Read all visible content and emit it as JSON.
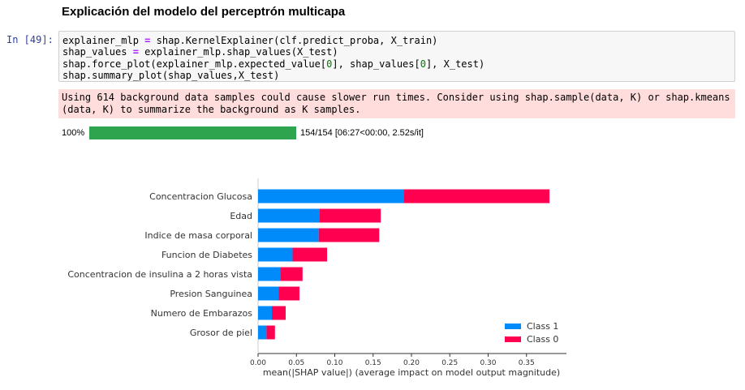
{
  "heading": "Explicación del modelo del perceptrón multicapa",
  "cell": {
    "prompt": "In [49]:",
    "code_lines": [
      [
        {
          "t": "explainer_mlp "
        },
        {
          "t": "=",
          "c": "kw"
        },
        {
          "t": " shap.KernelExplainer(clf.predict_proba, X_train)"
        }
      ],
      [
        {
          "t": "shap_values "
        },
        {
          "t": "=",
          "c": "kw"
        },
        {
          "t": " explainer_mlp.shap_values(X_test)"
        }
      ],
      [
        {
          "t": "shap.force_plot(explainer_mlp.expected_value["
        },
        {
          "t": "0",
          "c": "num"
        },
        {
          "t": "], shap_values["
        },
        {
          "t": "0",
          "c": "num"
        },
        {
          "t": "], X_test)"
        }
      ],
      [
        {
          "t": "shap.summary_plot(shap_values,X_test)"
        }
      ]
    ]
  },
  "stderr": "Using 614 background data samples could cause slower run times. Consider using shap.sample(data, K) or shap.kmeans\n(data, K) to summarize the background as K samples.",
  "progress": {
    "percent_label": "100%",
    "fraction": 1.0,
    "status": "154/154 [06:27<00:00, 2.52s/it]",
    "color": "#2ea44f"
  },
  "chart_data": {
    "type": "bar",
    "stacked": true,
    "orientation": "horizontal",
    "categories": [
      "Concentracion Glucosa",
      "Edad",
      "Indice de masa corporal",
      "Funcion de Diabetes",
      "Concentracion de insulina a 2 horas vista",
      "Presion Sanguinea",
      "Numero de Embarazos",
      "Grosor de piel"
    ],
    "series": [
      {
        "name": "Class 1",
        "color": "#008bfb",
        "values": [
          0.19,
          0.08,
          0.079,
          0.045,
          0.029,
          0.027,
          0.018,
          0.011
        ]
      },
      {
        "name": "Class 0",
        "color": "#ff0051",
        "values": [
          0.19,
          0.08,
          0.079,
          0.045,
          0.029,
          0.027,
          0.018,
          0.011
        ]
      }
    ],
    "xlabel": "mean(|SHAP value|) (average impact on model output magnitude)",
    "xlim": [
      0,
      0.4
    ],
    "xticks": [
      0.0,
      0.05,
      0.1,
      0.15,
      0.2,
      0.25,
      0.3,
      0.35
    ],
    "xtick_labels": [
      "0.00",
      "0.05",
      "0.10",
      "0.15",
      "0.20",
      "0.25",
      "0.30",
      "0.35"
    ],
    "legend_position": "bottom-right",
    "grid": false
  }
}
